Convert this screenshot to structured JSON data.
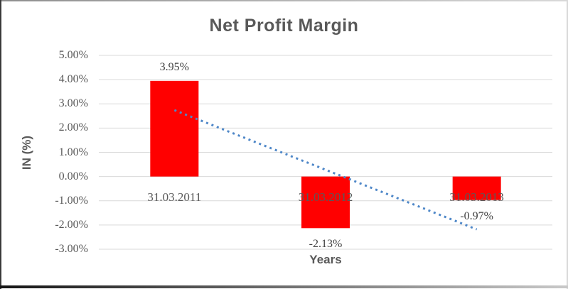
{
  "chart_data": {
    "type": "bar",
    "title": "Net Profit Margin",
    "xlabel": "Years",
    "ylabel": "IN (%)",
    "categories": [
      "31.03.2011",
      "31.03.2012",
      "31.03.2013"
    ],
    "values": [
      3.95,
      -2.13,
      -0.97
    ],
    "data_labels": [
      "3.95%",
      "-2.13%",
      "-0.97%"
    ],
    "yticks": [
      {
        "value": 5,
        "label": "5.00%"
      },
      {
        "value": 4,
        "label": "4.00%"
      },
      {
        "value": 3,
        "label": "3.00%"
      },
      {
        "value": 2,
        "label": "2.00%"
      },
      {
        "value": 1,
        "label": "1.00%"
      },
      {
        "value": 0,
        "label": "0.00%"
      },
      {
        "value": -1,
        "label": "-1.00%"
      },
      {
        "value": -2,
        "label": "-2.00%"
      },
      {
        "value": -3,
        "label": "-3.00%"
      }
    ],
    "ylim": [
      -3,
      5
    ],
    "grid": true,
    "legend": "none",
    "bar_color": "#FF0000",
    "gridline_color": "#D9D9D9",
    "text_color": "#595959",
    "data_label_color": "#404040",
    "trendline": {
      "type": "linear",
      "style": "dotted",
      "color": "#4E87C8",
      "start_value": 2.74,
      "end_value": -2.18
    }
  }
}
